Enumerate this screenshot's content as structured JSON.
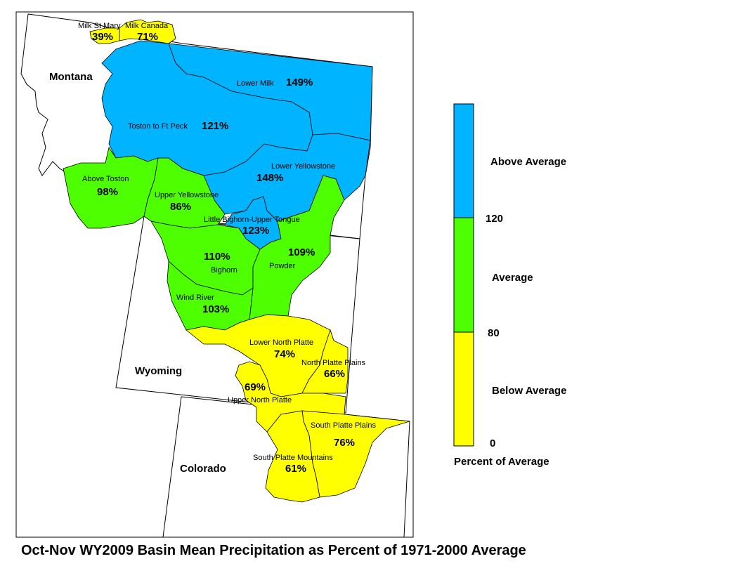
{
  "title": "Oct-Nov WY2009 Basin Mean Precipitation as Percent of 1971-2000 Average",
  "states": [
    {
      "id": "montana",
      "label": "Montana"
    },
    {
      "id": "wyoming",
      "label": "Wyoming"
    },
    {
      "id": "colorado",
      "label": "Colorado"
    }
  ],
  "categories": {
    "above": {
      "label": "Above Average",
      "color": "#00B4FF"
    },
    "average": {
      "label": "Average",
      "color": "#4DFF00"
    },
    "below": {
      "label": "Below Average",
      "color": "#FFFF00"
    }
  },
  "basins": [
    {
      "id": "milk-st-mary",
      "name": "Milk St Mary",
      "percent": "39%",
      "category": "below"
    },
    {
      "id": "milk-canada",
      "name": "Milk Canada",
      "percent": "71%",
      "category": "below"
    },
    {
      "id": "lower-milk",
      "name": "Lower Milk",
      "percent": "149%",
      "category": "above"
    },
    {
      "id": "toston-ft-peck",
      "name": "Toston to Ft Peck",
      "percent": "121%",
      "category": "above"
    },
    {
      "id": "lower-yellowstone",
      "name": "Lower Yellowstone",
      "percent": "148%",
      "category": "above"
    },
    {
      "id": "above-toston",
      "name": "Above Toston",
      "percent": "98%",
      "category": "average"
    },
    {
      "id": "upper-yellowstone",
      "name": "Upper Yellowstone",
      "percent": "86%",
      "category": "average"
    },
    {
      "id": "little-bighorn-upper-tongue",
      "name": "Little Bighorn-Upper Tongue",
      "percent": "123%",
      "category": "above"
    },
    {
      "id": "bighorn",
      "name": "Bighorn",
      "percent": "110%",
      "category": "average"
    },
    {
      "id": "powder",
      "name": "Powder",
      "percent": "109%",
      "category": "average"
    },
    {
      "id": "wind-river",
      "name": "Wind River",
      "percent": "103%",
      "category": "average"
    },
    {
      "id": "lower-north-platte",
      "name": "Lower North Platte",
      "percent": "74%",
      "category": "below"
    },
    {
      "id": "north-platte-plains",
      "name": "North Platte Plains",
      "percent": "66%",
      "category": "below"
    },
    {
      "id": "upper-north-platte",
      "name": "Upper North Platte",
      "percent": "69%",
      "category": "below"
    },
    {
      "id": "south-platte-plains",
      "name": "South Platte Plains",
      "percent": "76%",
      "category": "below"
    },
    {
      "id": "south-platte-mountains",
      "name": "South Platte Mountains",
      "percent": "61%",
      "category": "below"
    }
  ],
  "legend": {
    "ticks": [
      "120",
      "80",
      "0"
    ],
    "caption": "Percent of Average"
  }
}
